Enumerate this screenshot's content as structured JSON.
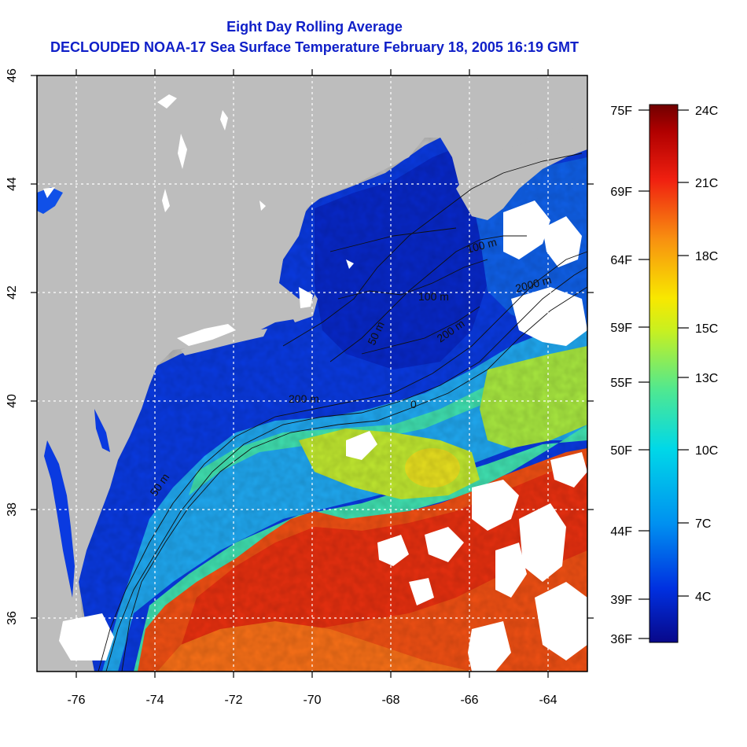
{
  "title": "Eight Day Rolling Average",
  "subtitle": "DECLOUDED NOAA-17 Sea Surface Temperature February 18, 2005 16:19 GMT",
  "map": {
    "lon_range": [
      -77,
      -63
    ],
    "lat_range": [
      35,
      46
    ],
    "lon_ticks": [
      "-76",
      "-74",
      "-72",
      "-70",
      "-68",
      "-66",
      "-64"
    ],
    "lat_ticks": [
      "36",
      "38",
      "40",
      "42",
      "44",
      "46"
    ],
    "contour_labels": [
      "50 m",
      "50 m",
      "100 m",
      "100 m",
      "200 m",
      "200 m",
      "2000 m",
      "0"
    ],
    "colors": {
      "land": "#bdbdbd",
      "cloud": "#ffffff",
      "frame": "#000000",
      "grid": "#ffffff"
    }
  },
  "colorbar": {
    "fahrenheit_labels": [
      "75F",
      "69F",
      "64F",
      "59F",
      "55F",
      "50F",
      "44F",
      "39F",
      "36F"
    ],
    "celsius_labels": [
      "24C",
      "21C",
      "18C",
      "15C",
      "13C",
      "10C",
      "7C",
      "4C"
    ],
    "range_c": [
      2,
      24
    ],
    "stops": [
      "#08088a",
      "#0030e0",
      "#0090f0",
      "#00d8e8",
      "#50e890",
      "#c8f020",
      "#f8e800",
      "#f89010",
      "#f02010",
      "#b00000",
      "#700000"
    ]
  }
}
